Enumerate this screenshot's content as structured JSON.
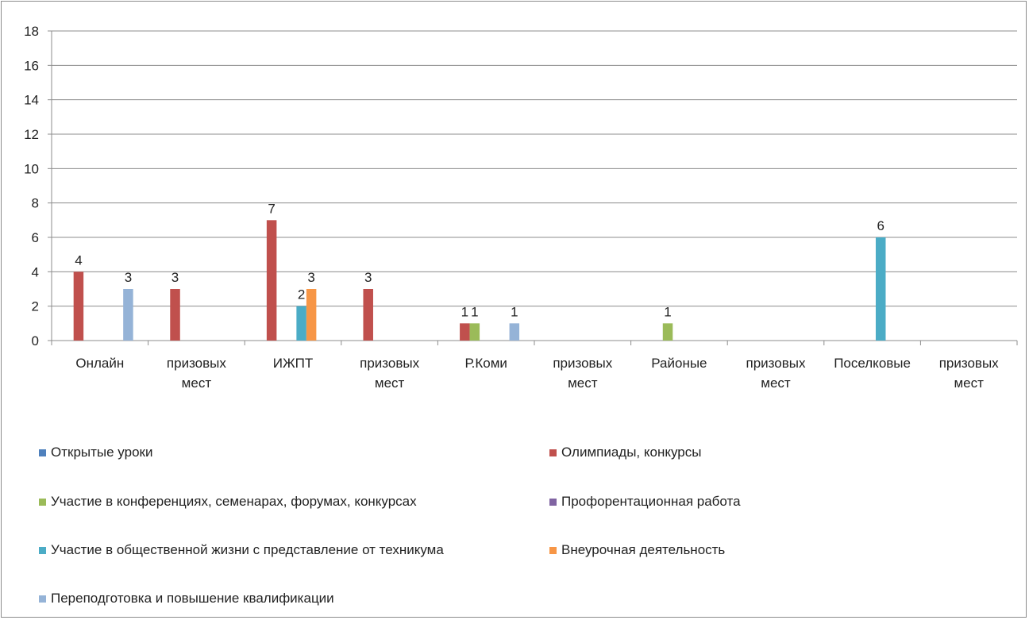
{
  "chart_data": {
    "type": "bar",
    "title": "",
    "xlabel": "",
    "ylabel": "",
    "ylim": [
      0,
      18
    ],
    "yticks": [
      0,
      2,
      4,
      6,
      8,
      10,
      12,
      14,
      16,
      18
    ],
    "grid": true,
    "legend_position": "bottom",
    "categories": [
      [
        "Онлайн"
      ],
      [
        "призовых",
        "мест"
      ],
      [
        "ИЖПТ"
      ],
      [
        "призовых",
        "мест"
      ],
      [
        "Р.Коми"
      ],
      [
        "призовых",
        "мест"
      ],
      [
        "Районые"
      ],
      [
        "призовых",
        "мест"
      ],
      [
        "Поселковые"
      ],
      [
        "призовых",
        "мест"
      ]
    ],
    "series": [
      {
        "name": "Открытые уроки",
        "color": "#4F81BD",
        "values": [
          null,
          null,
          null,
          null,
          null,
          null,
          null,
          null,
          null,
          null
        ]
      },
      {
        "name": "Олимпиады, конкурсы",
        "color": "#C0504D",
        "values": [
          4,
          3,
          7,
          3,
          1,
          null,
          null,
          null,
          null,
          null
        ]
      },
      {
        "name": "Участие в конференциях, семенарах, форумах, конкурсах",
        "color": "#9BBB59",
        "values": [
          null,
          null,
          null,
          null,
          1,
          null,
          1,
          null,
          null,
          null
        ]
      },
      {
        "name": "Профорентационная работа",
        "color": "#8064A2",
        "values": [
          null,
          null,
          null,
          null,
          null,
          null,
          null,
          null,
          null,
          null
        ]
      },
      {
        "name": "Участие в общественной жизни с представление от техникума",
        "color": "#4BACC6",
        "values": [
          null,
          null,
          2,
          null,
          null,
          null,
          null,
          null,
          6,
          null
        ]
      },
      {
        "name": "Внеурочная деятельность",
        "color": "#F79646",
        "values": [
          null,
          null,
          3,
          null,
          null,
          null,
          null,
          null,
          null,
          null
        ]
      },
      {
        "name": "Переподготовка и повышение квалификации",
        "color": "#95B3D7",
        "values": [
          3,
          null,
          null,
          null,
          1,
          null,
          null,
          null,
          null,
          null
        ]
      }
    ]
  }
}
